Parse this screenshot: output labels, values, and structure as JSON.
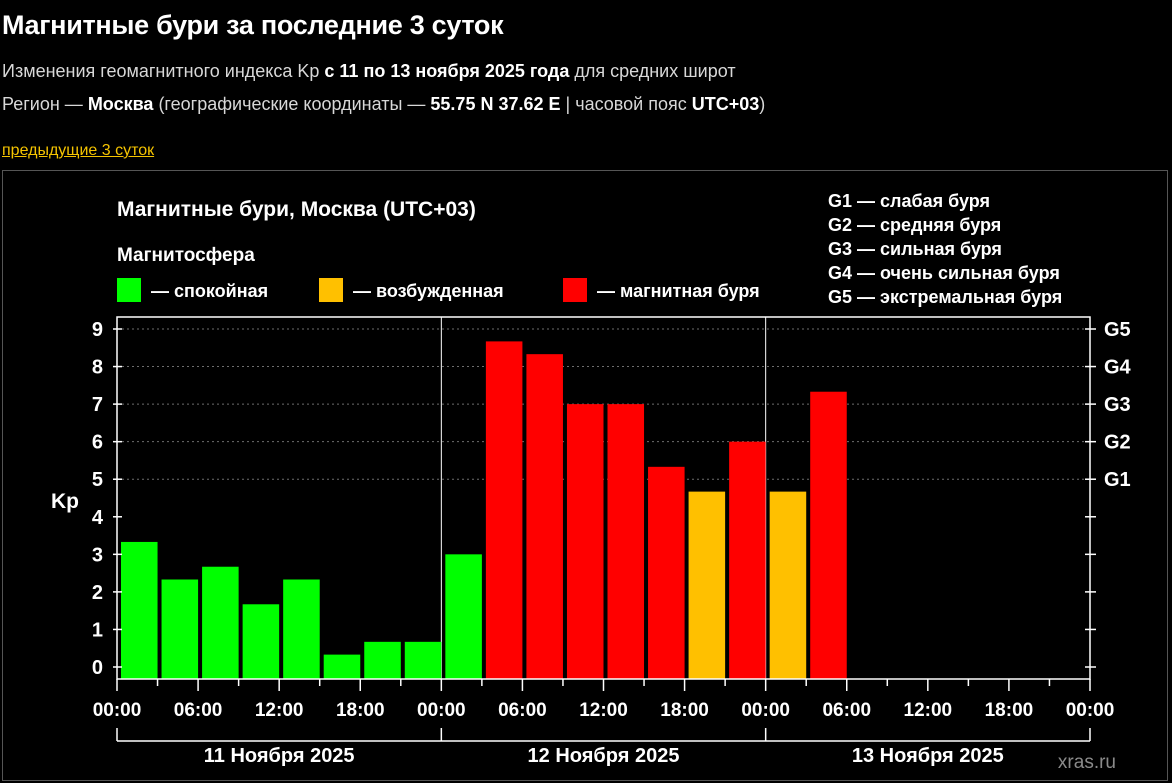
{
  "header": {
    "title": "Магнитные бури за последние 3 суток",
    "subtitle": {
      "prefix": "Изменения геомагнитного индекса Kp ",
      "range": "с 11 по 13 ноября 2025 года",
      "suffix": " для средних широт"
    },
    "region": {
      "label": "Регион — ",
      "city": "Москва",
      "coords_label": " (географические координаты — ",
      "coords": "55.75 N 37.62 E",
      "tz_label": " | часовой пояс ",
      "tz": "UTC+03",
      "close": ")"
    },
    "prev_link": "предыдущие 3 суток"
  },
  "colors": {
    "background": "#000000",
    "quiet": "#00ff00",
    "disturbed": "#ffc000",
    "storm": "#ff0000",
    "link": "#f5c400"
  },
  "chart_data": {
    "type": "bar",
    "title": "Магнитные бури, Москва (UTC+03)",
    "ylabel": "Kp",
    "ylim": [
      0,
      9
    ],
    "yticks": [
      "0",
      "1",
      "2",
      "3",
      "4",
      "5",
      "6",
      "7",
      "8",
      "9"
    ],
    "right_ticks": [
      {
        "kp": 5,
        "label": "G1"
      },
      {
        "kp": 6,
        "label": "G2"
      },
      {
        "kp": 7,
        "label": "G3"
      },
      {
        "kp": 8,
        "label": "G4"
      },
      {
        "kp": 9,
        "label": "G5"
      }
    ],
    "grid": true,
    "legend": {
      "title": "Магнитосфера",
      "items": [
        {
          "label": "— спокойная",
          "status": "quiet"
        },
        {
          "label": "— возбужденная",
          "status": "disturbed"
        },
        {
          "label": "— магнитная буря",
          "status": "storm"
        }
      ]
    },
    "g_scale": [
      "G1 — слабая буря",
      "G2 — средняя буря",
      "G3 — сильная буря",
      "G4 — очень сильная буря",
      "G5 — экстремальная буря"
    ],
    "x_tick_labels": [
      "00:00",
      "06:00",
      "12:00",
      "18:00",
      "00:00",
      "06:00",
      "12:00",
      "18:00",
      "00:00",
      "06:00",
      "12:00",
      "18:00",
      "00:00"
    ],
    "days": [
      "11 Ноября 2025",
      "12 Ноября 2025",
      "13 Ноября 2025"
    ],
    "series": [
      {
        "values": [
          3.33,
          2.33,
          2.67,
          1.67,
          2.33,
          0.33,
          0.67,
          0.67,
          3.0,
          8.67,
          8.33,
          7.0,
          7.0,
          5.33,
          4.67,
          6.0,
          4.67,
          7.33
        ],
        "status": [
          "quiet",
          "quiet",
          "quiet",
          "quiet",
          "quiet",
          "quiet",
          "quiet",
          "quiet",
          "quiet",
          "storm",
          "storm",
          "storm",
          "storm",
          "storm",
          "disturbed",
          "storm",
          "disturbed",
          "storm"
        ]
      }
    ],
    "watermark": "xras.ru"
  }
}
